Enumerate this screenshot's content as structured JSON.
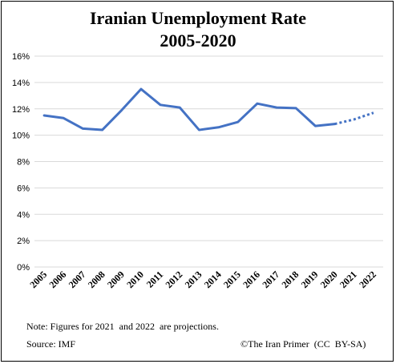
{
  "chart_data": {
    "type": "line",
    "title": "Iranian Unemployment Rate",
    "subtitle": "2005-2020",
    "categories": [
      "2005",
      "2006",
      "2007",
      "2008",
      "2009",
      "2010",
      "2011",
      "2012",
      "2013",
      "2014",
      "2015",
      "2016",
      "2017",
      "2018",
      "2019",
      "2020",
      "2021",
      "2022"
    ],
    "series": [
      {
        "actual": [
          11.5,
          11.3,
          10.5,
          10.4,
          11.9,
          13.5,
          12.3,
          12.1,
          10.4,
          10.6,
          11.0,
          12.4,
          12.1,
          12.05,
          10.7,
          10.85
        ],
        "projected_from_index": 15,
        "projected": [
          10.85,
          11.2,
          11.7
        ],
        "color": "#4472C4"
      }
    ],
    "ylim": [
      0,
      16
    ],
    "yticks": [
      "0%",
      "2%",
      "4%",
      "6%",
      "8%",
      "10%",
      "12%",
      "14%",
      "16%"
    ],
    "grid": true,
    "legend": "none"
  },
  "footer": {
    "note": "Note: Figures for 2021  and 2022  are projections.",
    "source": "Source: IMF",
    "credit": "©The Iran Primer  (CC  BY-SA)"
  }
}
